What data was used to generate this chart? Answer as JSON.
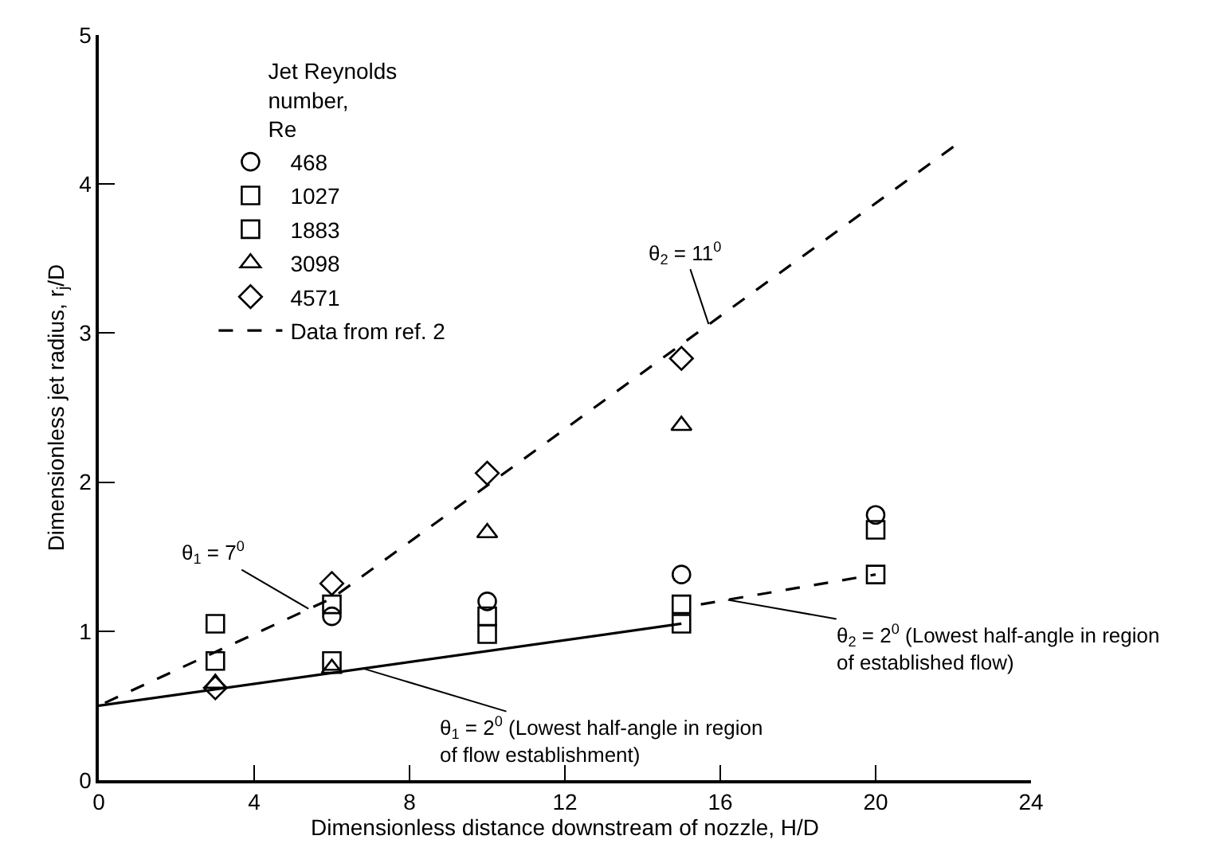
{
  "chart_data": {
    "type": "scatter",
    "xlabel": "Dimensionless distance downstream of nozzle, H/D",
    "ylabel": "Dimensionless jet radius, r$_{j}$/D",
    "legend_title": "Jet Reynolds\nnumber,\nRe",
    "legend": "top left",
    "grid": false,
    "xlim": [
      0,
      24
    ],
    "xticks": [
      0,
      4,
      8,
      12,
      16,
      20,
      24
    ],
    "ylim": [
      0,
      5
    ],
    "yticks": [
      0,
      1,
      2,
      3,
      4,
      5
    ],
    "series": [
      {
        "name": "468",
        "color": "#000000",
        "marker": "circle",
        "x": [
          6,
          10,
          15,
          20
        ],
        "values": [
          1.1,
          1.2,
          1.38,
          1.78
        ]
      },
      {
        "name": "1027",
        "color": "#000000",
        "marker": "square",
        "x": [
          3,
          6,
          10,
          15,
          20
        ],
        "values": [
          1.05,
          1.18,
          1.1,
          1.18,
          1.38
        ]
      },
      {
        "name": "1883",
        "color": "#000000",
        "marker": "square",
        "x": [
          3,
          6,
          10,
          15,
          20
        ],
        "values": [
          0.8,
          0.8,
          0.98,
          1.05,
          1.68
        ]
      },
      {
        "name": "3098",
        "color": "#000000",
        "marker": "triangle",
        "x": [
          3,
          6,
          10,
          15
        ],
        "values": [
          0.65,
          0.75,
          1.66,
          2.38
        ]
      },
      {
        "name": "4571",
        "color": "#000000",
        "marker": "diamond",
        "x": [
          3,
          6,
          10,
          15
        ],
        "values": [
          0.62,
          1.32,
          2.06,
          2.83
        ]
      },
      {
        "name": "Data from ref. 2",
        "type": "line",
        "line_style": "dashed",
        "marker": "none",
        "color": "#000000",
        "x": [
          22,
          6,
          0
        ],
        "values": [
          4.25,
          1.22,
          0.5
        ]
      },
      {
        "type": "line",
        "line_style": "solid",
        "marker": "none",
        "color": "#000000",
        "x": [
          0,
          15
        ],
        "values": [
          0.5,
          1.05
        ]
      },
      {
        "type": "line",
        "line_style": "dashed",
        "marker": "none",
        "color": "#000000",
        "x": [
          15.5,
          20
        ],
        "values": [
          1.18,
          1.38
        ]
      }
    ],
    "annotations": [
      {
        "text": "θ$_{1}$ = 7$^{0}$",
        "x": 5.4,
        "y": 1.15
      },
      {
        "text": "θ$_{2}$ = 11$^{0}$",
        "x": 15.7,
        "y": 3.06
      },
      {
        "text": "θ$_{1}$ = 2$^{0}$ (Lowest half-angle in region\nof flow establishment)",
        "x": 6.8,
        "y": 0.75
      },
      {
        "text": "θ$_{2}$ = 2$^{0}$ (Lowest half-angle in region\nof established flow)",
        "x": 16.2,
        "y": 1.21
      }
    ]
  }
}
